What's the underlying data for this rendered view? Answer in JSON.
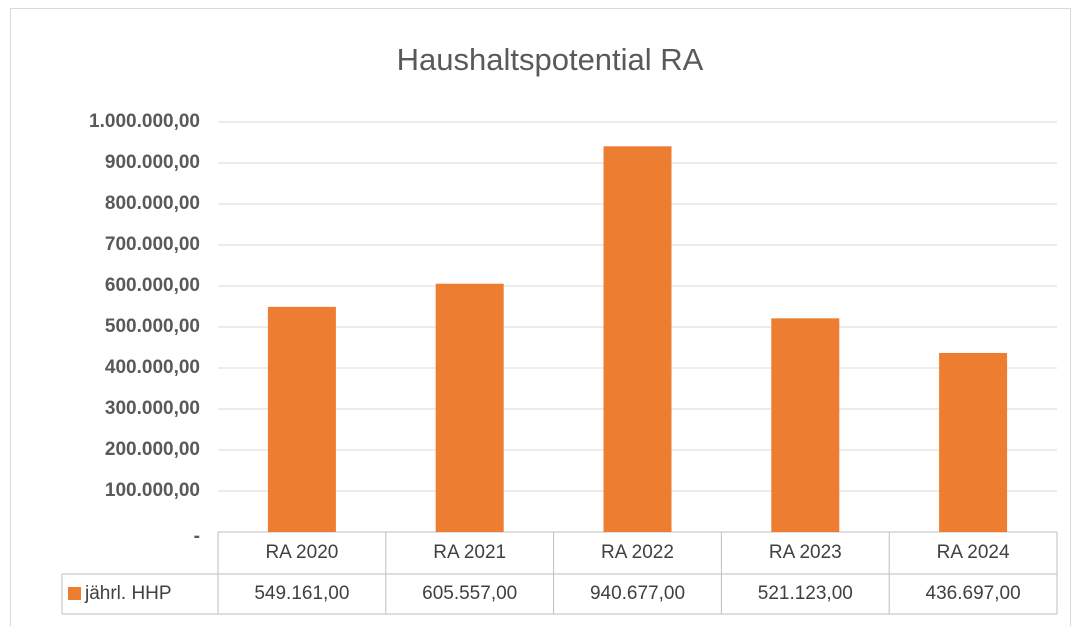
{
  "chart_data": {
    "type": "bar",
    "title": "Haushaltspotential RA",
    "categories": [
      "RA 2020",
      "RA 2021",
      "RA 2022",
      "RA 2023",
      "RA 2024"
    ],
    "series": [
      {
        "name": "jährl. HHP",
        "color": "#ed7d31",
        "values": [
          549161,
          605557,
          940677,
          521123,
          436697
        ],
        "value_labels": [
          "549.161,00",
          "605.557,00",
          "940.677,00",
          "521.123,00",
          "436.697,00"
        ]
      }
    ],
    "ylim": [
      0,
      1000000
    ],
    "yticks": [
      {
        "value": 0,
        "label": "-"
      },
      {
        "value": 100000,
        "label": "100.000,00"
      },
      {
        "value": 200000,
        "label": "200.000,00"
      },
      {
        "value": 300000,
        "label": "300.000,00"
      },
      {
        "value": 400000,
        "label": "400.000,00"
      },
      {
        "value": 500000,
        "label": "500.000,00"
      },
      {
        "value": 600000,
        "label": "600.000,00"
      },
      {
        "value": 700000,
        "label": "700.000,00"
      },
      {
        "value": 800000,
        "label": "800.000,00"
      },
      {
        "value": 900000,
        "label": "900.000,00"
      },
      {
        "value": 1000000,
        "label": "1.000.000,00"
      }
    ],
    "grid": true
  }
}
